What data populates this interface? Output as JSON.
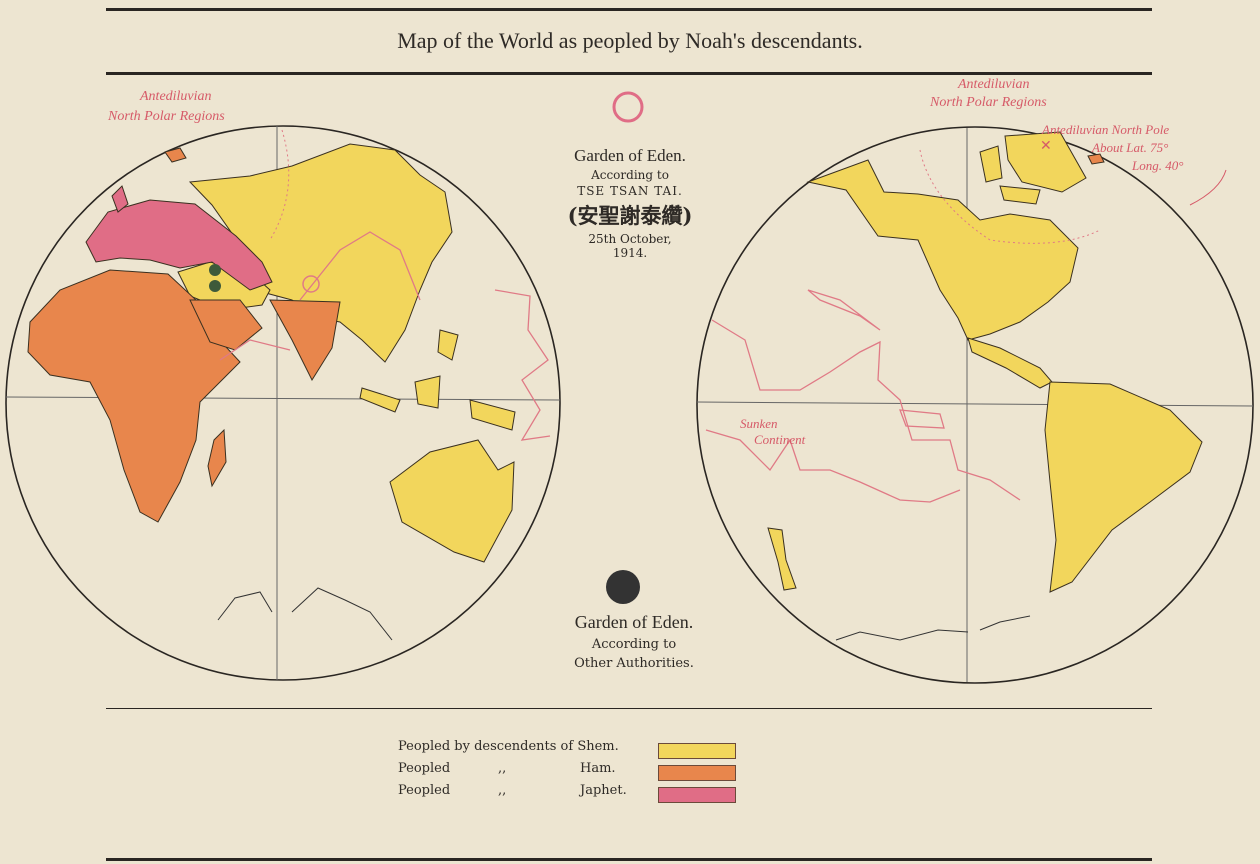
{
  "title": "Map of the World as peopled by Noah's descendants.",
  "eden_tse_tsan_tai": {
    "heading": "Garden of Eden.",
    "line1": "According to",
    "line2": "TSE TSAN TAI.",
    "line3": "(安聖謝泰纘)",
    "line4": "25th October,",
    "line5": "1914."
  },
  "eden_other": {
    "heading": "Garden of Eden.",
    "line1": "According to",
    "line2": "Other Authorities."
  },
  "annotations": {
    "left_polar_1": "Antediluvian",
    "left_polar_2": "North Polar Regions",
    "right_polar_1": "Antediluvian",
    "right_polar_2": "North Polar Regions",
    "pole_1": "Antediluvian North Pole",
    "pole_2": "About Lat. 75°",
    "pole_3": "Long. 40°",
    "sunken_1": "Sunken",
    "sunken_2": "Continent"
  },
  "legend": [
    {
      "label": "Peopled by descendents of Shem.",
      "ditto": "",
      "name": "",
      "color": "#f2d65c"
    },
    {
      "label": "Peopled",
      "ditto": ",,",
      "name": "Ham.",
      "color": "#e8864c"
    },
    {
      "label": "Peopled",
      "ditto": ",,",
      "name": "Japhet.",
      "color": "#e06d86"
    }
  ],
  "colors": {
    "paper": "#ede5d1",
    "shem": "#f2d65c",
    "ham": "#e8864c",
    "japhet": "#e06d86",
    "annotation_red": "#d65a68"
  }
}
